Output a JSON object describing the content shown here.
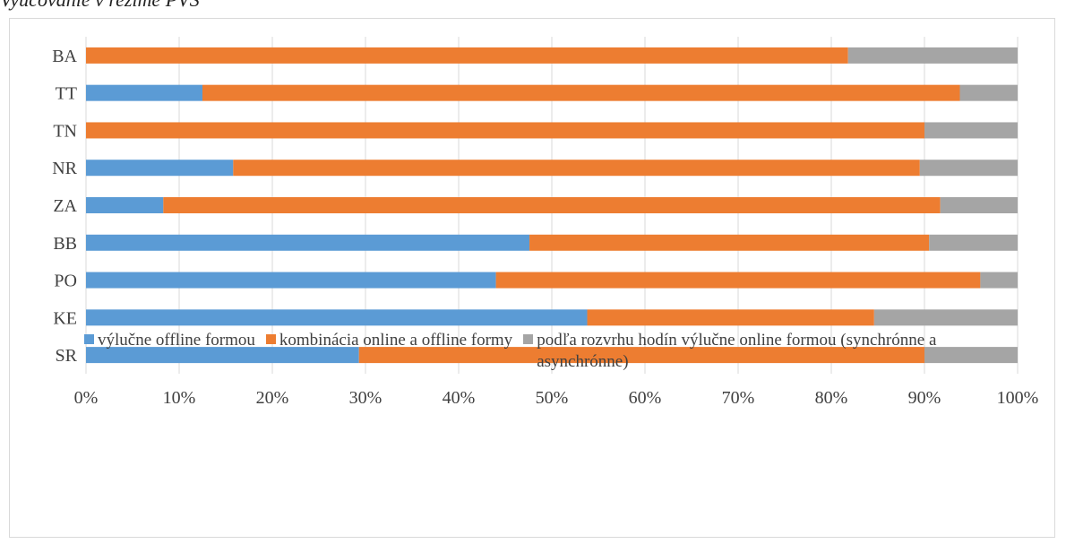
{
  "page": {
    "caption": "Vyučovanie v režime PVS"
  },
  "colors": {
    "offline": "#5b9bd5",
    "combined": "#ed7d31",
    "online": "#a5a5a5",
    "grid": "#d9d9d9",
    "text": "#404040"
  },
  "legend": {
    "items": [
      {
        "label": "výlučne offline formou"
      },
      {
        "label": "kombinácia online a offline formy"
      },
      {
        "label": "podľa rozvrhu hodín výlučne online formou (synchrónne a asynchrónne)"
      }
    ]
  },
  "chart_data": {
    "type": "bar",
    "orientation": "horizontal",
    "stacked": "percent",
    "categories": [
      "BA",
      "TT",
      "TN",
      "NR",
      "ZA",
      "BB",
      "PO",
      "KE",
      "SR"
    ],
    "series": [
      {
        "name": "výlučne offline formou",
        "values": [
          0,
          12.5,
          0,
          15.8,
          8.3,
          47.6,
          44.0,
          53.8,
          29.3
        ]
      },
      {
        "name": "kombinácia online a offline formy",
        "values": [
          81.8,
          81.3,
          90.0,
          73.7,
          83.4,
          42.9,
          52.0,
          30.8,
          60.7
        ]
      },
      {
        "name": "podľa rozvrhu hodín výlučne online formou (synchrónne a asynchrónne)",
        "values": [
          18.2,
          6.2,
          10.0,
          10.5,
          8.3,
          9.5,
          4.0,
          15.4,
          10.0
        ]
      }
    ],
    "xlim": [
      0,
      100
    ],
    "x_ticks": [
      "0%",
      "10%",
      "20%",
      "30%",
      "40%",
      "50%",
      "60%",
      "70%",
      "80%",
      "90%",
      "100%"
    ],
    "grid": "vertical",
    "legend_position": "bottom"
  }
}
